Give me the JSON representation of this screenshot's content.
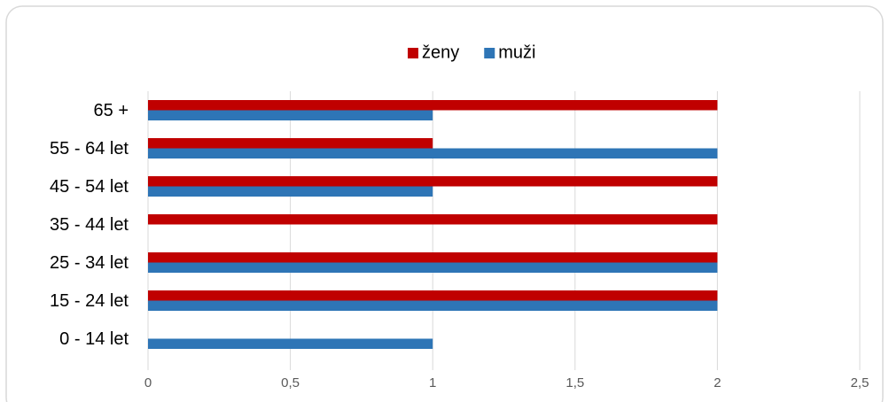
{
  "chart_data": {
    "type": "barh",
    "categories": [
      "0 - 14 let",
      "15 - 24 let",
      "25 - 34 let",
      "35 - 44 let",
      "45 - 54 let",
      "55 - 64 let",
      "65 +"
    ],
    "series": [
      {
        "name": "ženy",
        "color": "#c00000",
        "values": [
          0,
          2,
          2,
          2,
          2,
          1,
          2
        ]
      },
      {
        "name": "muži",
        "color": "#2e75b6",
        "values": [
          1,
          2,
          2,
          0,
          1,
          2,
          1
        ]
      }
    ],
    "xlim": [
      0,
      2.5
    ],
    "xticks": [
      0,
      {
        "value": 0.5,
        "label": "0,5"
      },
      1,
      {
        "value": 1.5,
        "label": "1,5"
      },
      2,
      {
        "value": 2.5,
        "label": "2,5"
      }
    ],
    "grid": true,
    "legend": "top"
  }
}
